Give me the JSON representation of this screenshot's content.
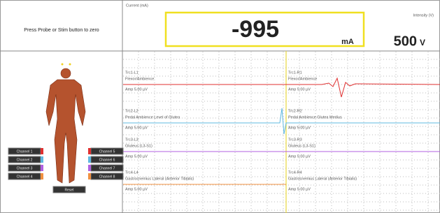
{
  "header": {
    "prompt": "Press Probe or Stim button to zero",
    "current_label": "Current (mA)",
    "current_value": "-995",
    "current_unit": "mA",
    "intensity_label": "Intensity (V)",
    "intensity_value": "500",
    "intensity_unit": "V"
  },
  "left_buttons": [
    "Channel 1",
    "Channel 2",
    "Channel 3",
    "Channel 4"
  ],
  "right_buttons": [
    "Channel 5",
    "Channel 6",
    "Channel 7",
    "Channel 8"
  ],
  "bottom_button": "Reset",
  "traces": [
    {
      "left": [
        "Trc1-L1",
        "Flexor/Ambience",
        "Amp 5.00 µV"
      ],
      "right": [
        "Trc1-R1",
        "Flexor/Ambience",
        "Amp 5.00 µV"
      ]
    },
    {
      "left": [
        "Trc2-L2",
        "Pedal Ambience Level of Glutea",
        "Amp 5.00 µV"
      ],
      "right": [
        "Trc2-R2",
        "Pedal Ambience Glutea Medius",
        "Amp 5.00 µV"
      ]
    },
    {
      "left": [
        "Trc3-L3",
        "Gluteus (L3-S1)",
        "Amp 5.00 µV"
      ],
      "right": [
        "Trc3-R3",
        "Gluteus (L3-S1)",
        "Amp 5.00 µV"
      ]
    },
    {
      "left": [
        "Trc4-L4",
        "Gastrocnemius Lateral (Anterior Tibialis)",
        "Amp 5.00 µV"
      ],
      "right": [
        "Trc4-R4",
        "Gastrocnemius Lateral (Anterior Tibialis)",
        "Amp 5.00 µV"
      ]
    }
  ]
}
